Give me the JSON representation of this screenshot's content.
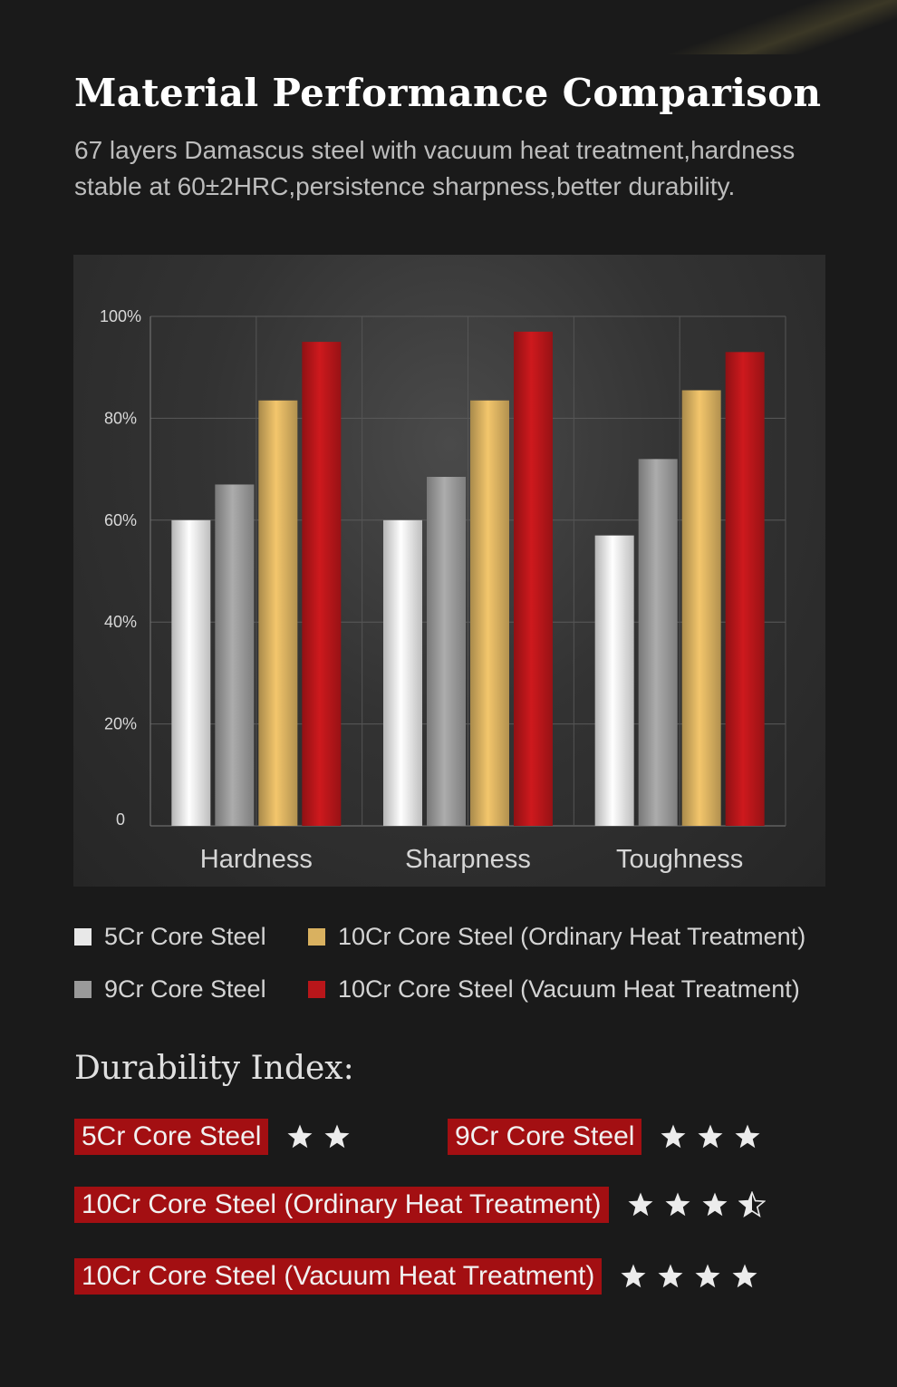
{
  "header": {
    "title": "Material Performance Comparison",
    "subtitle": "67 layers Damascus steel with vacuum heat treatment,hardness stable at 60±2HRC,persistence sharpness,better durability."
  },
  "chart_data": {
    "type": "bar",
    "categories": [
      "Hardness",
      "Sharpness",
      "Toughness"
    ],
    "series": [
      {
        "name": "5Cr Core Steel",
        "values": [
          60,
          60,
          57
        ],
        "color": "#e8e8e8"
      },
      {
        "name": "9Cr Core Steel",
        "values": [
          67,
          68.5,
          72
        ],
        "color": "#9a9a9a"
      },
      {
        "name": "10Cr Core Steel (Ordinary Heat Treatment)",
        "values": [
          83.5,
          83.5,
          85.5
        ],
        "color": "#d9b160"
      },
      {
        "name": "10Cr Core Steel (Vacuum Heat Treatment)",
        "values": [
          95,
          97,
          93
        ],
        "color": "#b8161a"
      }
    ],
    "yticks": [
      "0",
      "20%",
      "40%",
      "60%",
      "80%",
      "100%"
    ],
    "ylim": [
      0,
      100
    ],
    "grid": true,
    "legend_position": "bottom"
  },
  "legend": {
    "items": [
      {
        "label": "5Cr Core Steel",
        "color": "#e8e8e8"
      },
      {
        "label": "10Cr Core Steel (Ordinary Heat Treatment)",
        "color": "#d9b160"
      },
      {
        "label": "9Cr Core Steel",
        "color": "#9a9a9a"
      },
      {
        "label": "10Cr Core Steel (Vacuum Heat Treatment)",
        "color": "#b8161a"
      }
    ]
  },
  "durability": {
    "title": "Durability  Index:",
    "rows": [
      {
        "label": "5Cr Core Steel",
        "rating": 2
      },
      {
        "label": "9Cr Core Steel",
        "rating": 3
      },
      {
        "label": "10Cr  Core Steel (Ordinary Heat Treatment)",
        "rating": 3.5
      },
      {
        "label": "10Cr  Core Steel (Vacuum Heat Treatment)",
        "rating": 4
      }
    ]
  }
}
